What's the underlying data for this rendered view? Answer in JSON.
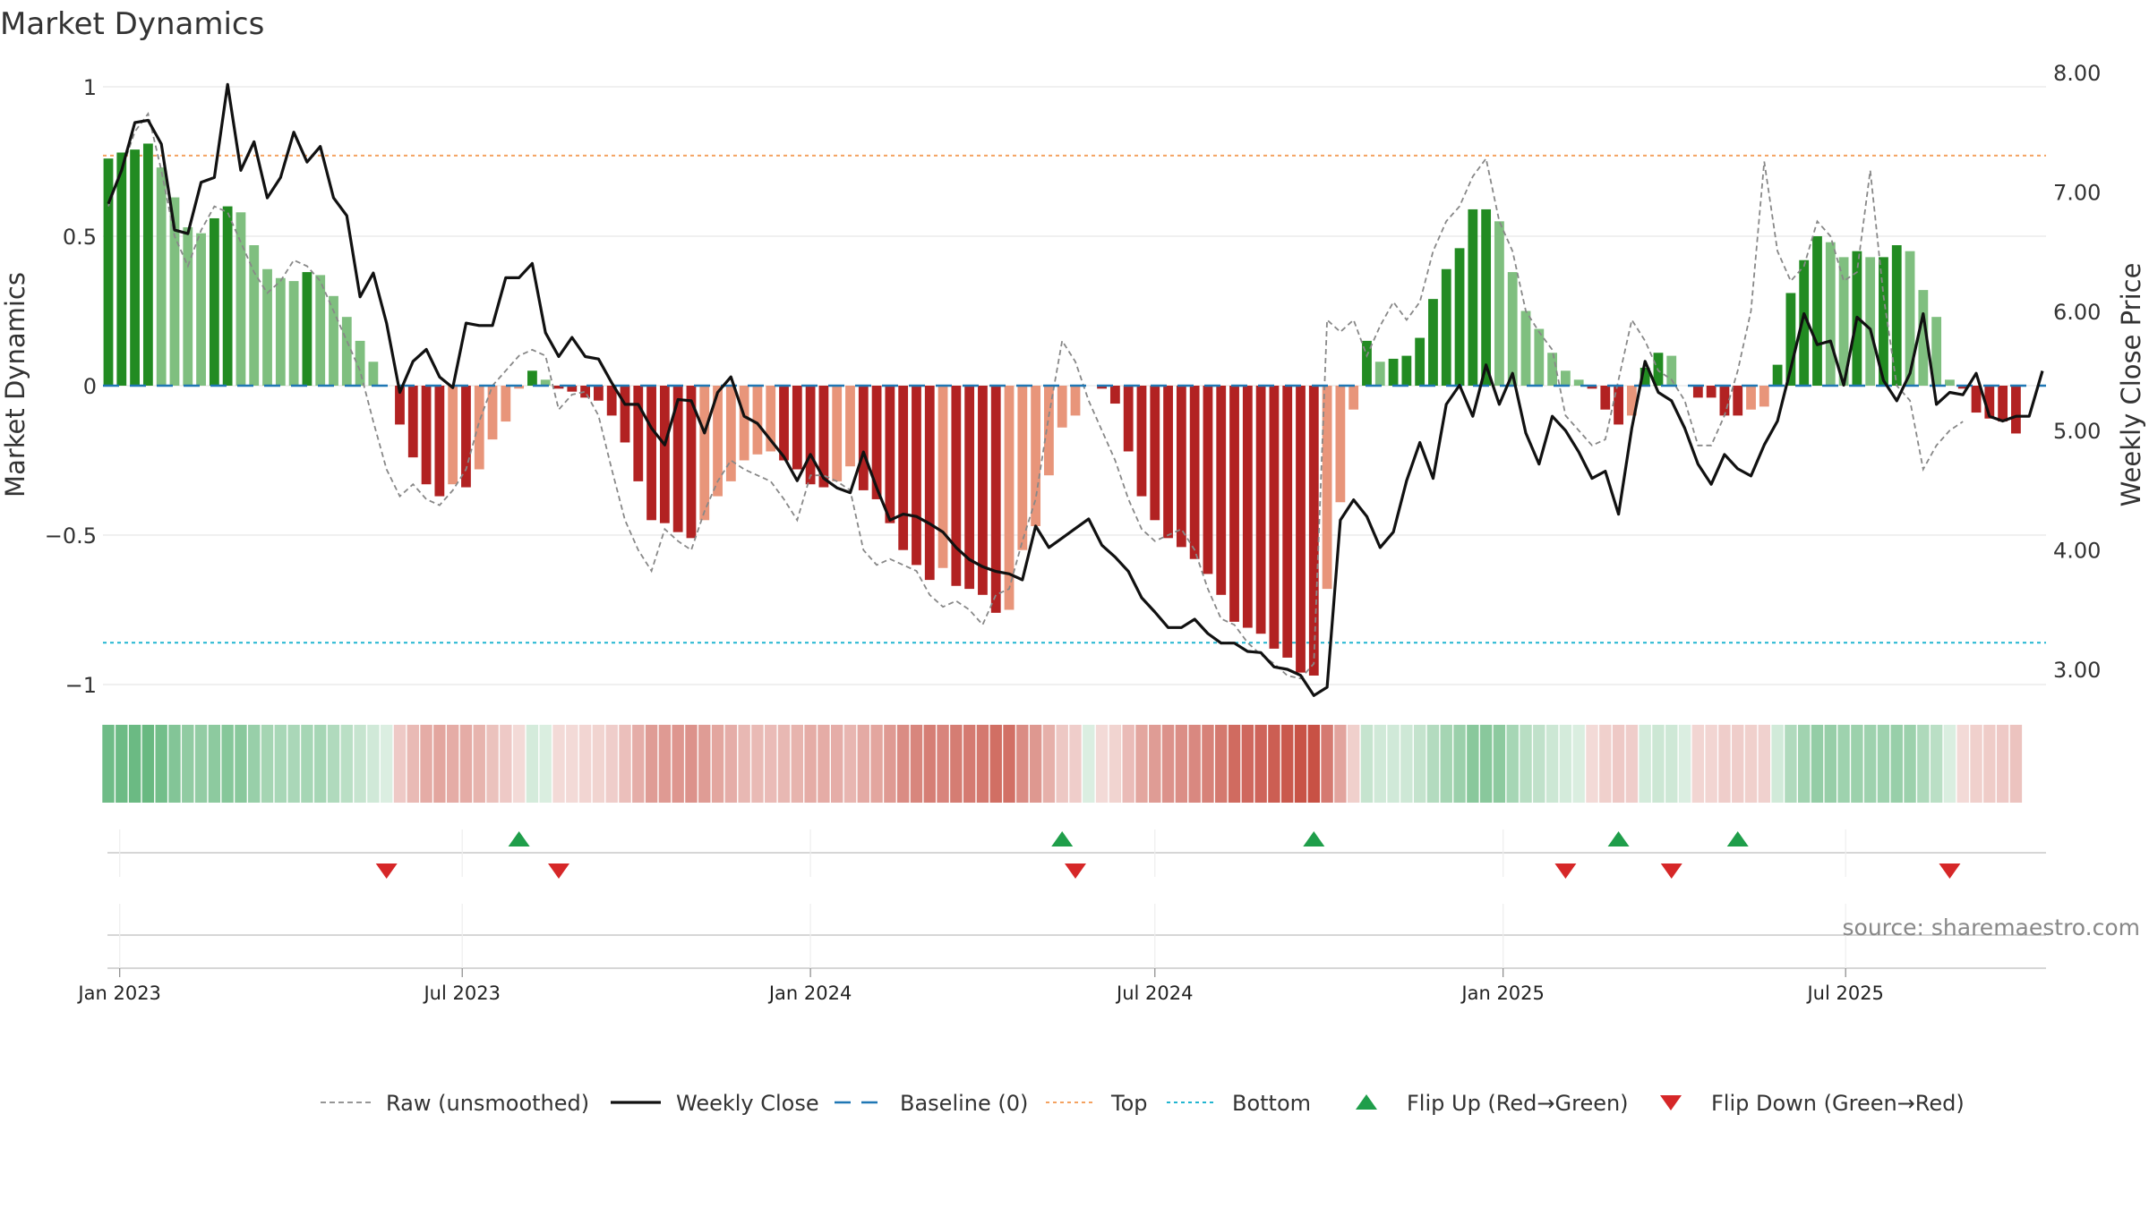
{
  "chart_data": {
    "type": "bar",
    "title": "Market Dynamics",
    "y_left_label": "Market Dynamics",
    "y_right_label": "Weekly Close Price",
    "y_left_range": [
      -1.05,
      1.05
    ],
    "y_left_ticks": [
      1,
      0.5,
      0,
      -0.5,
      -1
    ],
    "y_left_tick_labels": [
      "1",
      "0.5",
      "0",
      "−0.5",
      "−1"
    ],
    "y_right_range": [
      2.8,
      8.0
    ],
    "y_right_ticks": [
      8,
      7,
      6,
      5,
      4,
      3
    ],
    "y_right_tick_labels": [
      "8.00",
      "7.00",
      "6.00",
      "5.00",
      "4.00",
      "3.00"
    ],
    "x_ticks": [
      {
        "date": "2023-01-01",
        "label": "Jan 2023"
      },
      {
        "date": "2023-07-01",
        "label": "Jul 2023"
      },
      {
        "date": "2024-01-01",
        "label": "Jan 2024"
      },
      {
        "date": "2024-07-01",
        "label": "Jul 2024"
      },
      {
        "date": "2025-01-01",
        "label": "Jan 2025"
      },
      {
        "date": "2025-07-01",
        "label": "Jul 2025"
      }
    ],
    "first_week": "2022-12-26",
    "last_week": "2025-10-13",
    "top_threshold": 0.77,
    "bottom_threshold": -0.86,
    "baseline": 0,
    "dynamics": [
      0.76,
      0.78,
      0.79,
      0.81,
      0.73,
      0.63,
      0.53,
      0.51,
      0.56,
      0.6,
      0.58,
      0.47,
      0.39,
      0.36,
      0.35,
      0.38,
      0.37,
      0.3,
      0.23,
      0.15,
      0.08,
      0.0,
      -0.13,
      -0.24,
      -0.33,
      -0.37,
      -0.33,
      -0.34,
      -0.28,
      -0.18,
      -0.12,
      -0.01,
      0.05,
      0.02,
      -0.01,
      -0.02,
      -0.04,
      -0.05,
      -0.1,
      -0.19,
      -0.32,
      -0.45,
      -0.46,
      -0.49,
      -0.51,
      -0.45,
      -0.37,
      -0.32,
      -0.25,
      -0.23,
      -0.22,
      -0.25,
      -0.28,
      -0.33,
      -0.34,
      -0.32,
      -0.27,
      -0.35,
      -0.38,
      -0.46,
      -0.55,
      -0.6,
      -0.65,
      -0.61,
      -0.67,
      -0.68,
      -0.7,
      -0.76,
      -0.75,
      -0.55,
      -0.47,
      -0.3,
      -0.14,
      -0.1,
      0.0,
      -0.01,
      -0.06,
      -0.22,
      -0.37,
      -0.45,
      -0.51,
      -0.54,
      -0.58,
      -0.63,
      -0.7,
      -0.79,
      -0.81,
      -0.83,
      -0.88,
      -0.91,
      -0.96,
      -0.97,
      -0.68,
      -0.39,
      -0.08,
      0.15,
      0.08,
      0.09,
      0.1,
      0.16,
      0.29,
      0.39,
      0.46,
      0.59,
      0.59,
      0.55,
      0.38,
      0.25,
      0.19,
      0.11,
      0.05,
      0.02,
      -0.01,
      -0.08,
      -0.13,
      -0.1,
      0.06,
      0.11,
      0.1,
      0.0,
      -0.04,
      -0.04,
      -0.1,
      -0.1,
      -0.08,
      -0.07,
      0.07,
      0.31,
      0.42,
      0.5,
      0.48,
      0.43,
      0.45,
      0.43,
      0.43,
      0.47,
      0.45,
      0.32,
      0.23,
      0.02,
      -0.01,
      -0.09,
      -0.11,
      -0.12,
      -0.16
    ],
    "raw": [
      0.6,
      0.72,
      0.85,
      0.91,
      0.72,
      0.5,
      0.4,
      0.52,
      0.6,
      0.58,
      0.48,
      0.38,
      0.31,
      0.35,
      0.42,
      0.4,
      0.35,
      0.25,
      0.15,
      0.05,
      -0.12,
      -0.28,
      -0.37,
      -0.33,
      -0.38,
      -0.4,
      -0.35,
      -0.28,
      -0.12,
      0.0,
      0.05,
      0.1,
      0.12,
      0.1,
      -0.08,
      -0.03,
      -0.02,
      -0.1,
      -0.28,
      -0.45,
      -0.55,
      -0.62,
      -0.48,
      -0.52,
      -0.55,
      -0.42,
      -0.32,
      -0.25,
      -0.28,
      -0.3,
      -0.32,
      -0.38,
      -0.45,
      -0.3,
      -0.3,
      -0.32,
      -0.35,
      -0.55,
      -0.6,
      -0.58,
      -0.6,
      -0.62,
      -0.7,
      -0.74,
      -0.72,
      -0.75,
      -0.8,
      -0.7,
      -0.68,
      -0.52,
      -0.38,
      -0.1,
      0.15,
      0.08,
      -0.05,
      -0.15,
      -0.25,
      -0.38,
      -0.48,
      -0.52,
      -0.5,
      -0.48,
      -0.55,
      -0.68,
      -0.78,
      -0.8,
      -0.86,
      -0.9,
      -0.93,
      -0.97,
      -0.98,
      -0.93,
      0.22,
      0.18,
      0.22,
      0.1,
      0.2,
      0.28,
      0.22,
      0.28,
      0.45,
      0.55,
      0.6,
      0.7,
      0.76,
      0.55,
      0.45,
      0.25,
      0.18,
      0.12,
      -0.1,
      -0.15,
      -0.2,
      -0.18,
      0.02,
      0.22,
      0.15,
      0.05,
      0.02,
      -0.05,
      -0.2,
      -0.2,
      -0.1,
      0.05,
      0.25,
      0.75,
      0.45,
      0.35,
      0.4,
      0.55,
      0.5,
      0.35,
      0.38,
      0.72,
      0.3,
      0.0,
      -0.05,
      -0.28,
      -0.2,
      -0.15,
      -0.12
    ],
    "weekly_close": [
      6.9,
      7.18,
      7.58,
      7.6,
      7.4,
      6.68,
      6.65,
      7.08,
      7.12,
      7.9,
      7.18,
      7.42,
      6.95,
      7.12,
      7.5,
      7.25,
      7.38,
      6.95,
      6.8,
      6.12,
      6.32,
      5.9,
      5.32,
      5.58,
      5.68,
      5.45,
      5.36,
      5.9,
      5.88,
      5.88,
      6.28,
      6.28,
      6.4,
      5.82,
      5.62,
      5.78,
      5.62,
      5.6,
      5.4,
      5.22,
      5.22,
      5.02,
      4.88,
      5.26,
      5.25,
      4.98,
      5.32,
      5.45,
      5.12,
      5.06,
      4.92,
      4.78,
      4.58,
      4.8,
      4.6,
      4.52,
      4.48,
      4.82,
      4.52,
      4.25,
      4.3,
      4.28,
      4.22,
      4.15,
      4.02,
      3.92,
      3.86,
      3.82,
      3.8,
      3.75,
      4.2,
      4.02,
      4.1,
      4.18,
      4.26,
      4.04,
      3.94,
      3.82,
      3.6,
      3.48,
      3.35,
      3.35,
      3.42,
      3.3,
      3.22,
      3.22,
      3.15,
      3.14,
      3.02,
      3.0,
      2.95,
      2.78,
      2.85,
      4.25,
      4.42,
      4.28,
      4.02,
      4.15,
      4.58,
      4.9,
      4.6,
      5.22,
      5.38,
      5.12,
      5.55,
      5.22,
      5.48,
      4.98,
      4.72,
      5.12,
      5.0,
      4.82,
      4.6,
      4.66,
      4.3,
      5.02,
      5.58,
      5.32,
      5.25,
      5.02,
      4.72,
      4.55,
      4.8,
      4.68,
      4.62,
      4.88,
      5.08,
      5.52,
      5.98,
      5.72,
      5.75,
      5.38,
      5.95,
      5.85,
      5.42,
      5.25,
      5.48,
      5.98,
      5.22,
      5.32,
      5.3,
      5.48,
      5.12,
      5.08,
      5.12,
      5.12,
      5.5
    ],
    "flips": [
      {
        "type": "down",
        "week": 21
      },
      {
        "type": "up",
        "week": 31
      },
      {
        "type": "down",
        "week": 34
      },
      {
        "type": "up",
        "week": 72
      },
      {
        "type": "down",
        "week": 73
      },
      {
        "type": "up",
        "week": 91
      },
      {
        "type": "down",
        "week": 110
      },
      {
        "type": "up",
        "week": 114
      },
      {
        "type": "down",
        "week": 118
      },
      {
        "type": "up",
        "week": 123
      },
      {
        "type": "down",
        "week": 139
      }
    ],
    "legend": [
      {
        "key": "raw",
        "label": "Raw (unsmoothed)"
      },
      {
        "key": "close",
        "label": "Weekly Close"
      },
      {
        "key": "baseline",
        "label": "Baseline (0)"
      },
      {
        "key": "top",
        "label": "Top"
      },
      {
        "key": "bottom",
        "label": "Bottom"
      },
      {
        "key": "flipup",
        "label": "Flip Up (Red→Green)"
      },
      {
        "key": "flipdown",
        "label": "Flip Down (Green→Red)"
      }
    ],
    "colors": {
      "strong_green": "#228b22",
      "light_green": "#7fbf7f",
      "strong_red": "#b22222",
      "light_red": "#e8957a",
      "close_line": "#111111",
      "raw_line": "#888888",
      "baseline": "#1f77b4",
      "top": "#f4a261",
      "bottom": "#22b5d0",
      "flip_up": "#1f9e4a",
      "flip_down": "#d62728"
    }
  },
  "source": "source: sharemaestro.com"
}
